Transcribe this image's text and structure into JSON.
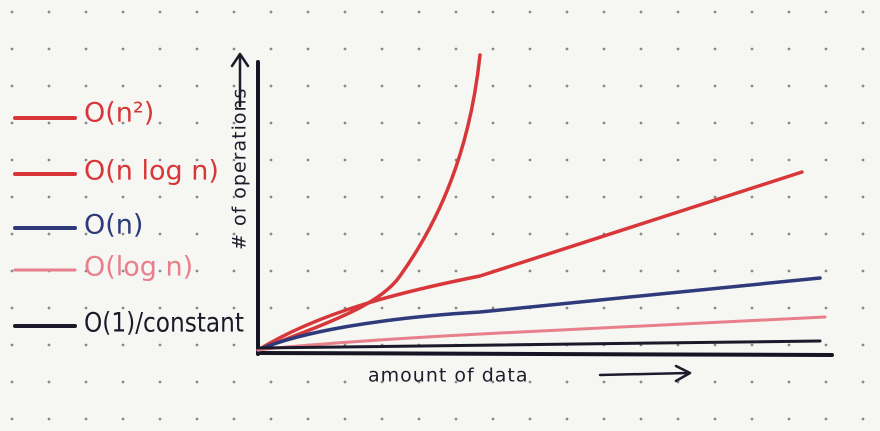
{
  "legend": [
    {
      "label": "O(n²)"
    },
    {
      "label": "O(n log n)"
    },
    {
      "label": "O(n)"
    },
    {
      "label": "O(log n)"
    },
    {
      "label": "O(1)/constant"
    }
  ],
  "y_axis_label": "# of operations",
  "x_axis_label": "amount of data"
}
